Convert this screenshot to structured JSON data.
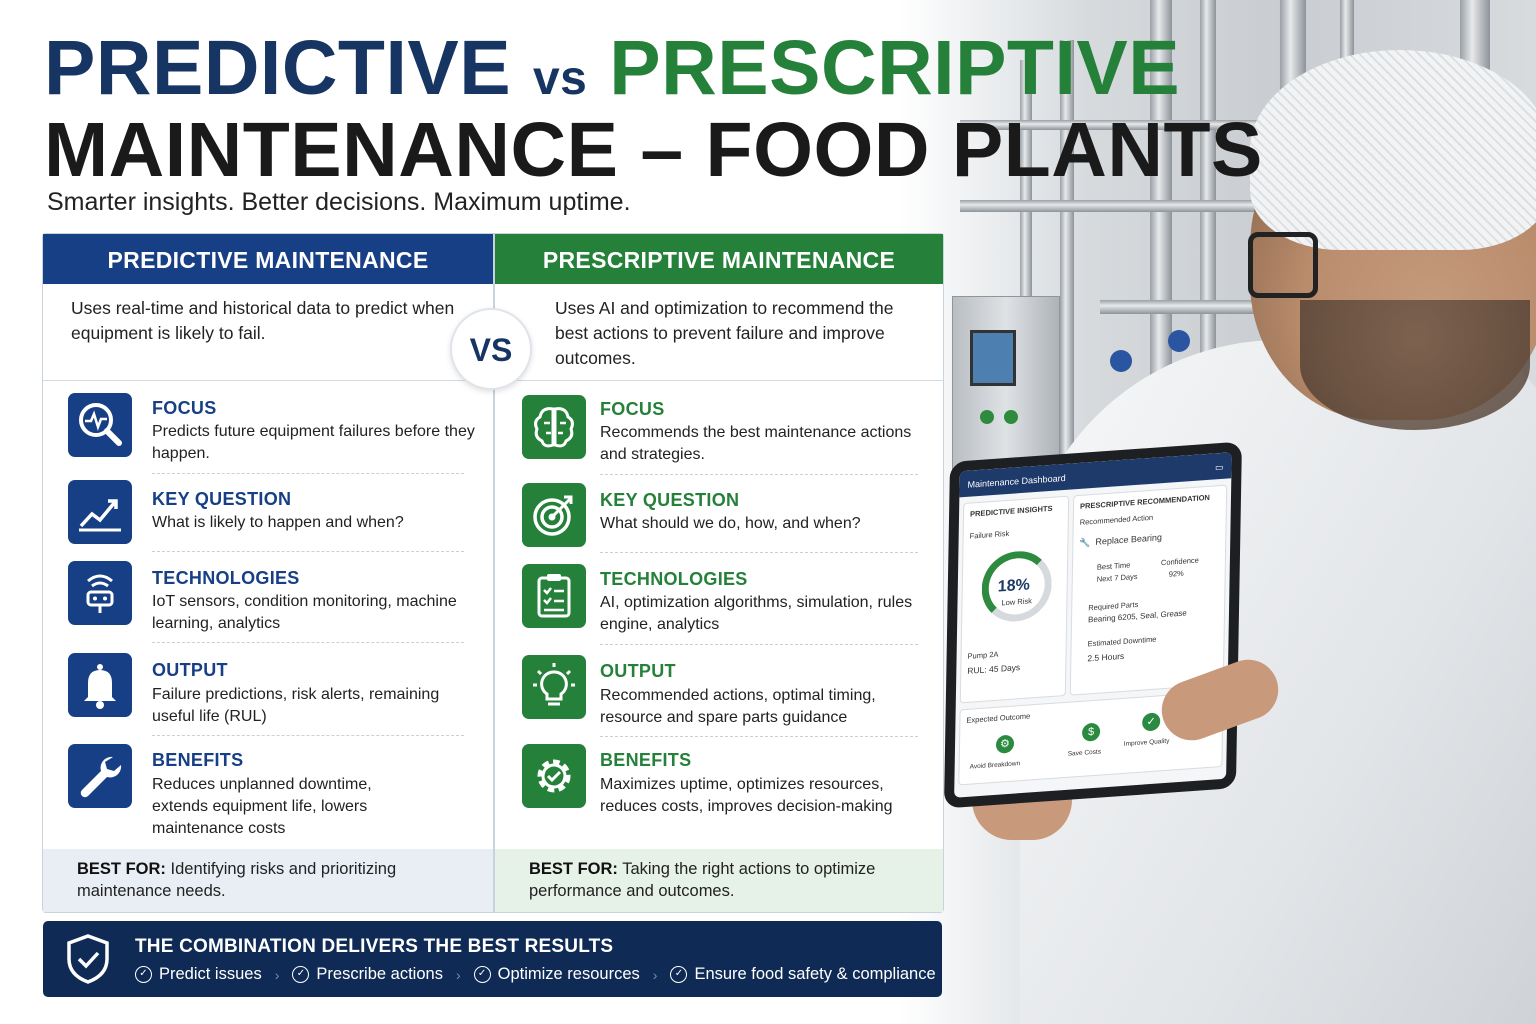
{
  "title": {
    "predictive": "PREDICTIVE",
    "vs": "vs",
    "prescriptive": "PRESCRIPTIVE",
    "line2": "MAINTENANCE – FOOD PLANTS"
  },
  "subtitle": "Smarter insights. Better decisions. Maximum uptime.",
  "vs_badge": "VS",
  "colors": {
    "navy": "#173f86",
    "green": "#25813a",
    "bar": "#0f2b55"
  },
  "predictive": {
    "header": "PREDICTIVE MAINTENANCE",
    "description": "Uses real-time and historical data to predict when equipment is likely to fail.",
    "rows": [
      {
        "icon": "magnifier-heartbeat-icon",
        "title": "FOCUS",
        "text": "Predicts future equipment failures before they happen."
      },
      {
        "icon": "trend-chart-icon",
        "title": "KEY QUESTION",
        "text": "What is likely to happen and when?"
      },
      {
        "icon": "iot-sensor-icon",
        "title": "TECHNOLOGIES",
        "text": "IoT sensors, condition monitoring, machine learning, analytics"
      },
      {
        "icon": "bell-icon",
        "title": "OUTPUT",
        "text": "Failure predictions, risk alerts, remaining useful life (RUL)"
      },
      {
        "icon": "wrench-icon",
        "title": "BENEFITS",
        "text": "Reduces unplanned downtime, extends equipment life, lowers maintenance costs"
      }
    ],
    "best_label": "BEST FOR:",
    "best_text": "Identifying risks and prioritizing maintenance needs."
  },
  "prescriptive": {
    "header": "PRESCRIPTIVE MAINTENANCE",
    "description": "Uses AI and optimization to recommend the best actions to prevent failure and improve outcomes.",
    "rows": [
      {
        "icon": "brain-icon",
        "title": "FOCUS",
        "text": "Recommends the best maintenance actions and strategies."
      },
      {
        "icon": "target-icon",
        "title": "KEY QUESTION",
        "text": "What should we do, how, and when?"
      },
      {
        "icon": "clipboard-checklist-icon",
        "title": "TECHNOLOGIES",
        "text": "AI, optimization algorithms, simulation, rules engine, analytics"
      },
      {
        "icon": "lightbulb-icon",
        "title": "OUTPUT",
        "text": "Recommended actions, optimal timing, resource and spare parts guidance"
      },
      {
        "icon": "gear-check-icon",
        "title": "BENEFITS",
        "text": "Maximizes uptime, optimizes resources, reduces costs, improves decision-making"
      }
    ],
    "best_label": "BEST FOR:",
    "best_text": "Taking the right actions to optimize performance and outcomes."
  },
  "combination": {
    "title": "THE COMBINATION DELIVERS THE BEST RESULTS",
    "items": [
      "Predict issues",
      "Prescribe actions",
      "Optimize resources",
      "Ensure food safety & compliance"
    ]
  },
  "tablet": {
    "title": "Maintenance Dashboard",
    "predictive_label": "PREDICTIVE INSIGHTS",
    "failure_risk": "Failure Risk",
    "risk_value": "18%",
    "risk_level": "Low Risk",
    "pump": "Pump 2A",
    "rul": "RUL: 45 Days",
    "prescriptive_label": "PRESCRIPTIVE RECOMMENDATION",
    "recommended_action_label": "Recommended Action",
    "recommended_action": "Replace Bearing",
    "best_time_label": "Best Time",
    "best_time": "Next 7 Days",
    "confidence_label": "Confidence",
    "confidence": "92%",
    "parts_label": "Required Parts",
    "parts": "Bearing 6205, Seal, Grease",
    "downtime_label": "Estimated Downtime",
    "downtime": "2.5 Hours",
    "outcome_label": "Expected Outcome",
    "outcomes": [
      "Avoid Breakdown",
      "Save Costs",
      "Improve Quality"
    ]
  }
}
